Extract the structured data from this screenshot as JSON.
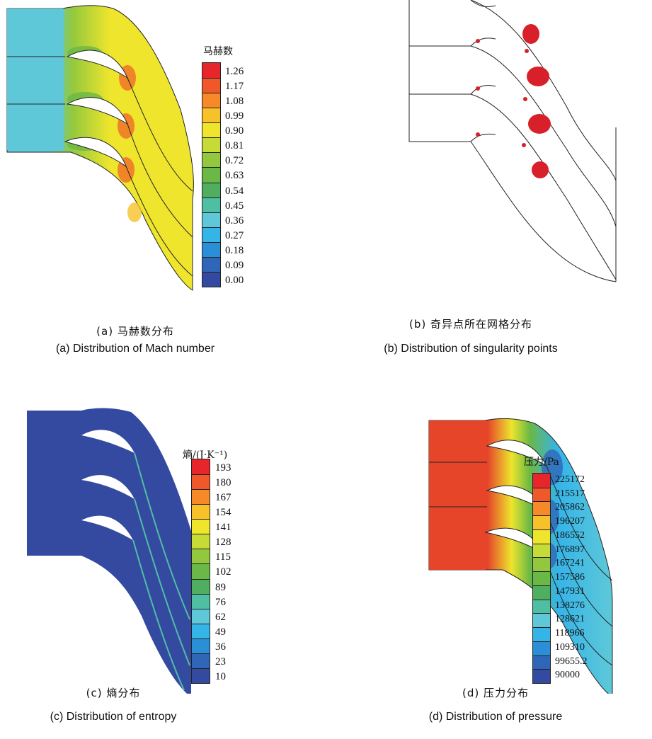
{
  "panels": {
    "a": {
      "caption_cn": "(a) 马赫数分布",
      "caption_en": "(a) Distribution of Mach number",
      "legend_title": "马赫数",
      "legend_values": [
        "1.26",
        "1.17",
        "1.08",
        "0.99",
        "0.90",
        "0.81",
        "0.72",
        "0.63",
        "0.54",
        "0.45",
        "0.36",
        "0.27",
        "0.18",
        "0.09",
        "0.00"
      ],
      "legend_colors": [
        "#e6262a",
        "#f0582a",
        "#f78a28",
        "#f7c229",
        "#eee52c",
        "#c7db36",
        "#93c83e",
        "#6ab845",
        "#4fae5f",
        "#4fbfa4",
        "#5ec8d8",
        "#35b4e8",
        "#2a8fd6",
        "#2f66b8",
        "#344aa0"
      ]
    },
    "b": {
      "caption_cn": "(b) 奇异点所在网格分布",
      "caption_en": "(b) Distribution of singularity points"
    },
    "c": {
      "caption_cn": "(c) 熵分布",
      "caption_en": "(c) Distribution of entropy",
      "legend_title": "熵/(J·K⁻¹)",
      "legend_values": [
        "193",
        "180",
        "167",
        "154",
        "141",
        "128",
        "115",
        "102",
        "89",
        "76",
        "62",
        "49",
        "36",
        "23",
        "10"
      ],
      "legend_colors": [
        "#e6262a",
        "#f0582a",
        "#f78a28",
        "#f7c229",
        "#eee52c",
        "#c7db36",
        "#93c83e",
        "#6ab845",
        "#4fae5f",
        "#4fbfa4",
        "#5ec8d8",
        "#35b4e8",
        "#2a8fd6",
        "#2f66b8",
        "#344aa0"
      ]
    },
    "d": {
      "caption_cn": "(d) 压力分布",
      "caption_en": "(d) Distribution of pressure",
      "legend_title": "压力/Pa",
      "legend_values": [
        "225172",
        "215517",
        "205862",
        "196207",
        "186552",
        "176897",
        "167241",
        "157586",
        "147931",
        "138276",
        "128621",
        "118966",
        "109310",
        "99655.2",
        "90000"
      ],
      "legend_colors": [
        "#e6262a",
        "#f0582a",
        "#f78a28",
        "#f7c229",
        "#eee52c",
        "#c7db36",
        "#93c83e",
        "#6ab845",
        "#4fae5f",
        "#4fbfa4",
        "#5ec8d8",
        "#35b4e8",
        "#2a8fd6",
        "#2f66b8",
        "#344aa0"
      ]
    }
  },
  "colors": {
    "outline": "#222222",
    "singularity": "#d8202a",
    "inlet_mach": "#5ec8d8",
    "entropy_bg": "#344aa0",
    "pressure_high": "#e6452a"
  }
}
